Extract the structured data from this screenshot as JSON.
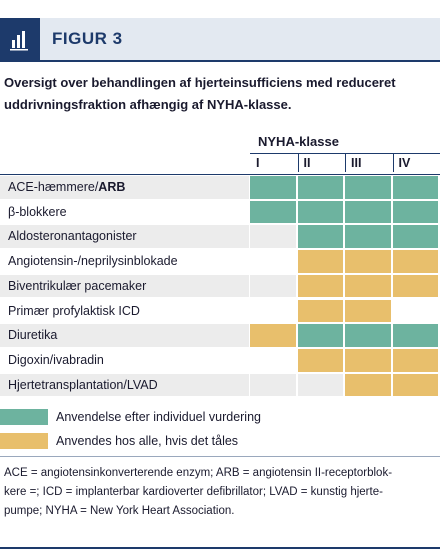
{
  "header": {
    "label": "FIGUR 3"
  },
  "caption": [
    "Oversigt over behandlingen af hjerteinsufficiens med reduceret",
    "uddrivningsfraktion afhængig af NYHA-klasse."
  ],
  "table": {
    "group_header": "NYHA-klasse",
    "columns": [
      "I",
      "II",
      "III",
      "IV"
    ],
    "rows": [
      {
        "label": "ACE-hæmmere/",
        "label_bold": "ARB",
        "cells": [
          0,
          0,
          0,
          0
        ]
      },
      {
        "label": "β-blokkere",
        "cells": [
          0,
          0,
          0,
          0
        ]
      },
      {
        "label": "Aldosteronantagonister",
        "cells": [
          null,
          0,
          0,
          0
        ]
      },
      {
        "label": "Angiotensin-/neprilysinblokade",
        "cells": [
          null,
          1,
          1,
          1
        ]
      },
      {
        "label": "Biventrikulær pacemaker",
        "cells": [
          null,
          1,
          1,
          1
        ]
      },
      {
        "label": "Primær profylaktisk ICD",
        "cells": [
          null,
          1,
          1,
          null
        ]
      },
      {
        "label": "Diuretika",
        "cells": [
          1,
          0,
          0,
          0
        ]
      },
      {
        "label": "Digoxin/ivabradin",
        "cells": [
          null,
          1,
          1,
          1
        ]
      },
      {
        "label": "Hjertetransplantation/LVAD",
        "cells": [
          null,
          null,
          1,
          1
        ]
      }
    ]
  },
  "legend": [
    {
      "label": "Anvendelse efter individuel vurdering",
      "color": "#6db39f"
    },
    {
      "label": "Anvendes hos alle, hvis det tåles",
      "color": "#e8bf6c"
    }
  ],
  "footnote": [
    "ACE = angiotensinkonverterende enzym; ARB = angiotensin II-receptorblok-",
    "kere =; ICD = implanterbar kardioverter defibrillator; LVAD = kunstig hjerte-",
    "pumpe; NYHA = New York Heart Association."
  ]
}
